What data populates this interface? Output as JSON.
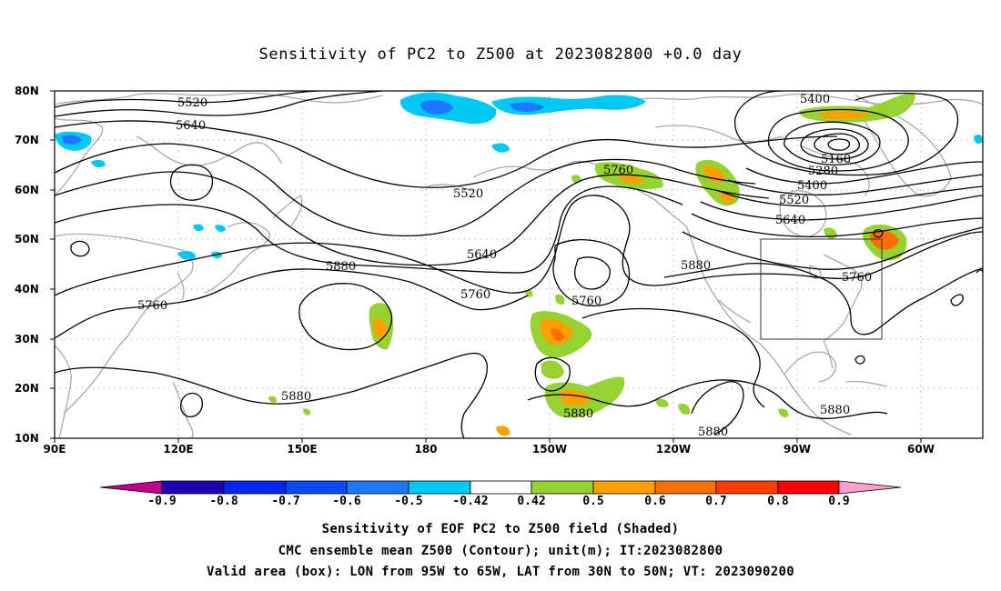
{
  "title": "Sensitivity of PC2 to Z500 at 2023082800 +0.0 day",
  "lat_ticks": [
    "80N",
    "70N",
    "60N",
    "50N",
    "40N",
    "30N",
    "20N",
    "10N"
  ],
  "lon_ticks": [
    "90E",
    "120E",
    "150E",
    "180",
    "150W",
    "120W",
    "90W",
    "60W"
  ],
  "contour_labels": [
    "5520",
    "5640",
    "5520",
    "5640",
    "5760",
    "5880",
    "5760",
    "5880",
    "5760",
    "5760",
    "5880",
    "5760",
    "5400",
    "5160",
    "5280",
    "5400",
    "5520",
    "5640",
    "5880",
    "5880",
    "5880",
    "5880"
  ],
  "colorbar": {
    "labels": [
      "-0.9",
      "-0.8",
      "-0.7",
      "-0.6",
      "-0.5",
      "-0.42",
      "0.42",
      "0.5",
      "0.6",
      "0.7",
      "0.8",
      "0.9"
    ],
    "colors": [
      "#c0008c",
      "#1a00b4",
      "#0028f0",
      "#0a4bf5",
      "#1e78ff",
      "#1ea0ff",
      "#00c8f5",
      "#ffffff",
      "#96d232",
      "#ffa000",
      "#ff6e00",
      "#ff3c00",
      "#ff0000",
      "#ffa0c8"
    ]
  },
  "box": {
    "lon_range": "95W to 65W",
    "lat_range": "30N to 50N"
  },
  "captions": [
    "Sensitivity of EOF PC2 to Z500 field (Shaded)",
    "CMC ensemble mean Z500 (Contour); unit(m); IT:2023082800",
    "Valid area (box): LON from 95W to 65W, LAT from 30N to 50N; VT: 2023090200"
  ]
}
